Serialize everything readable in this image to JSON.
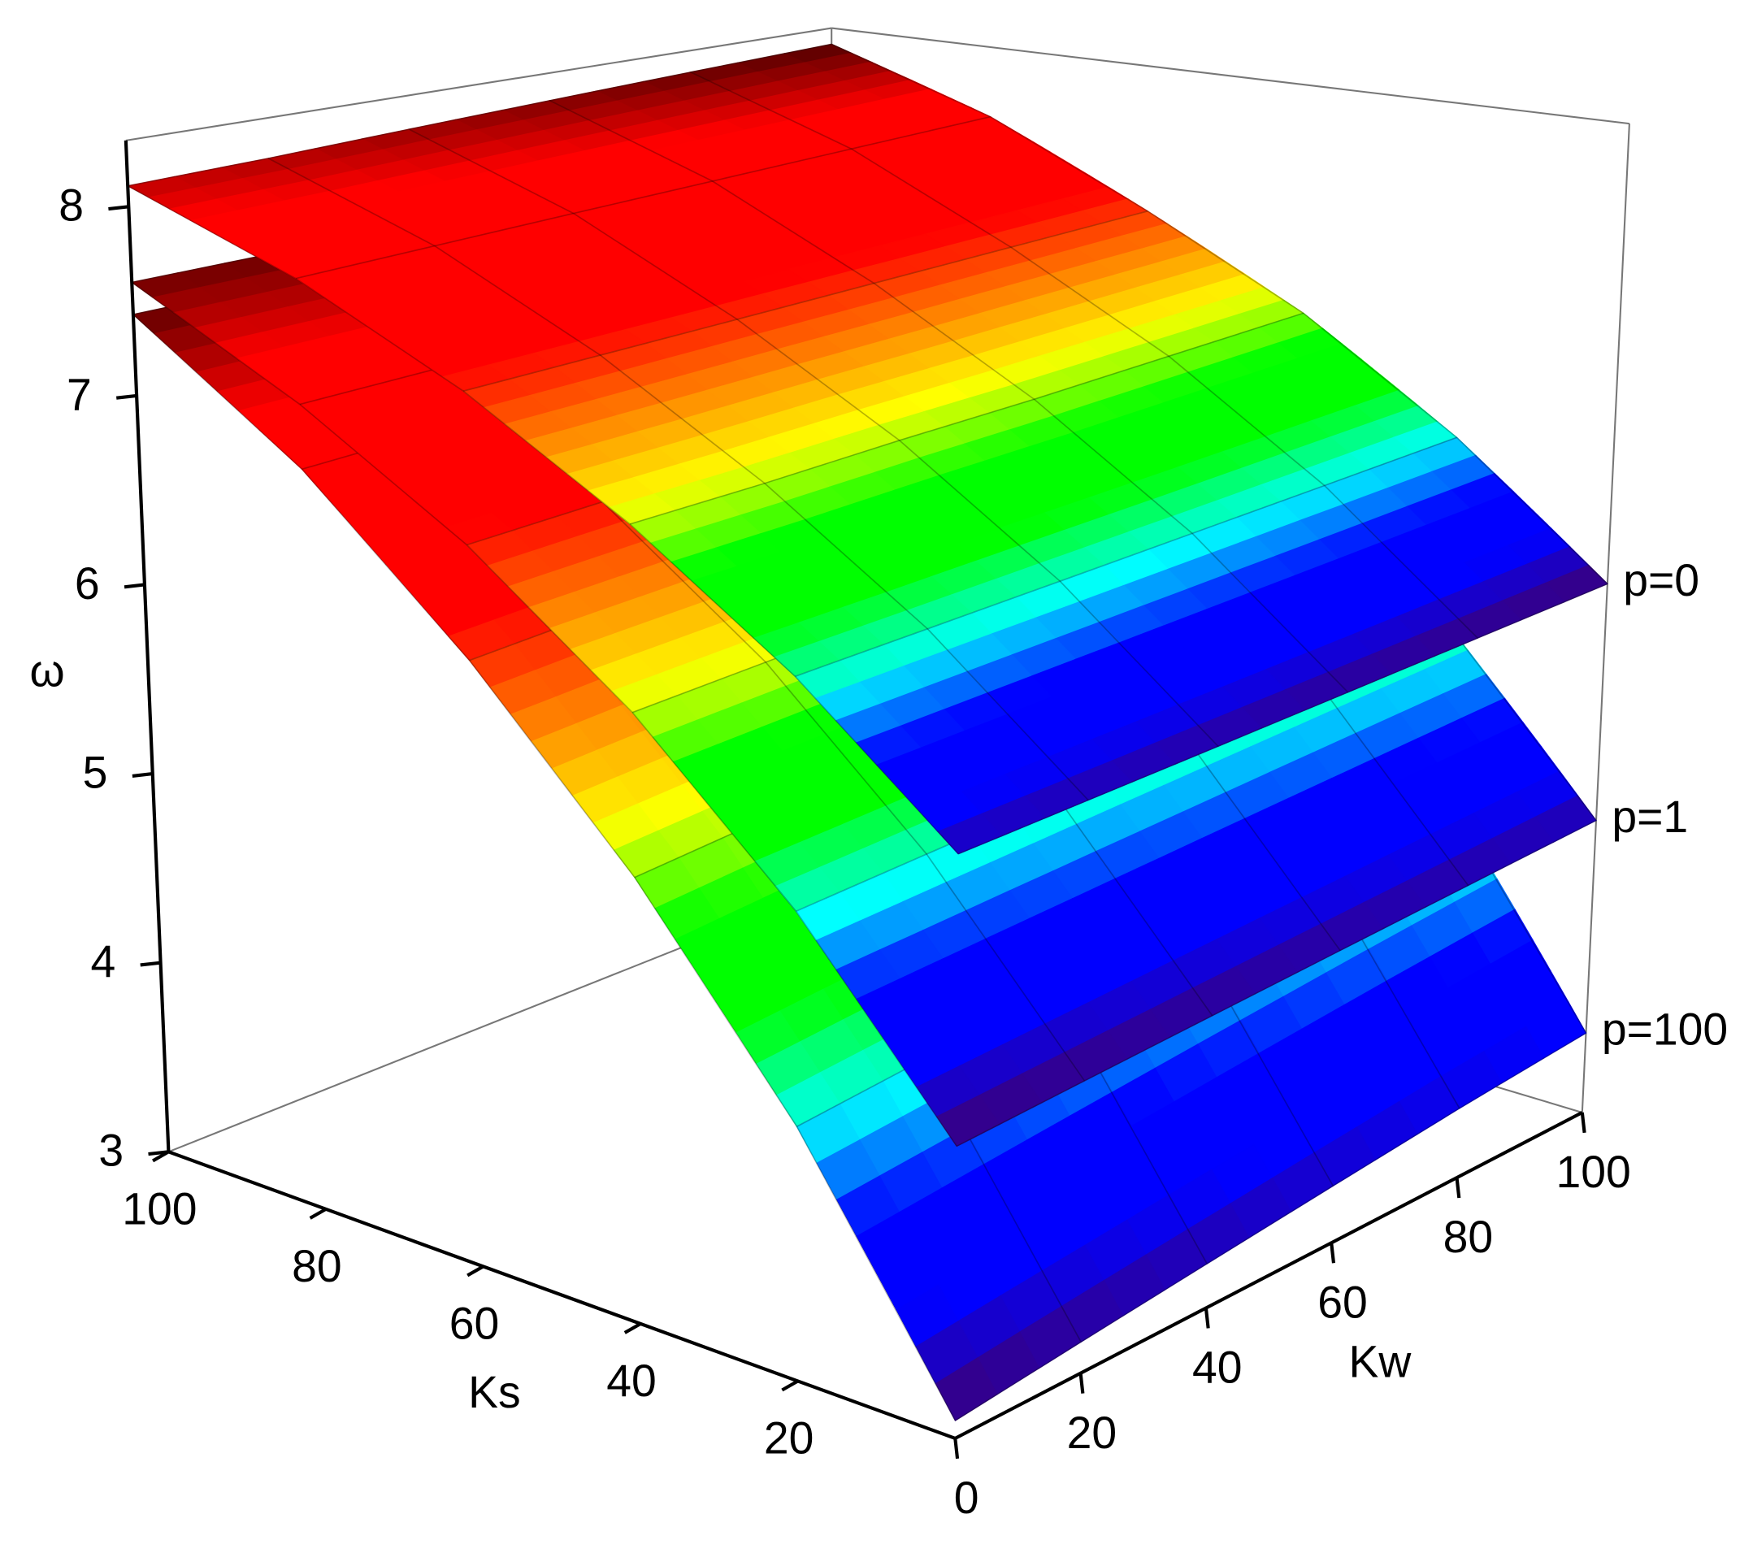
{
  "chart_data": {
    "type": "surface3d",
    "x_label": "Kw",
    "y_label": "Ks",
    "z_label": "ω",
    "x": [
      0,
      20,
      40,
      60,
      80,
      100
    ],
    "y": [
      0,
      20,
      40,
      60,
      80,
      100
    ],
    "xlim": [
      0,
      100
    ],
    "ylim": [
      0,
      100
    ],
    "zlim": [
      3,
      8.35
    ],
    "xticks": [
      0,
      20,
      40,
      60,
      80,
      100
    ],
    "yticks": [
      20,
      40,
      60,
      80,
      100
    ],
    "zticks": [
      3,
      4,
      5,
      6,
      7,
      8
    ],
    "colormap": [
      "#400070",
      "#0000ff",
      "#0000ff",
      "#00ffff",
      "#00ff00",
      "#00ff00",
      "#ffff00",
      "#ff8000",
      "#ff0000",
      "#ff0000",
      "#ff0000",
      "#500000"
    ],
    "series": [
      {
        "name": "p=0",
        "values": [
          [
            5.96,
            5.94,
            5.92,
            5.9,
            5.88,
            5.86
          ],
          [
            6.6,
            6.58,
            6.56,
            6.54,
            6.52,
            6.5
          ],
          [
            7.12,
            7.1,
            7.09,
            7.07,
            7.06,
            7.05
          ],
          [
            7.55,
            7.54,
            7.53,
            7.52,
            7.51,
            7.5
          ],
          [
            7.88,
            7.89,
            7.9,
            7.91,
            7.92,
            7.93
          ],
          [
            8.11,
            8.13,
            8.16,
            8.19,
            8.22,
            8.25
          ]
        ]
      },
      {
        "name": "p=1",
        "values": [
          [
            4.48,
            4.5,
            4.52,
            4.54,
            4.56,
            4.58
          ],
          [
            5.4,
            5.41,
            5.42,
            5.43,
            5.44,
            5.45
          ],
          [
            6.15,
            6.16,
            6.17,
            6.18,
            6.19,
            6.2
          ],
          [
            6.75,
            6.76,
            6.77,
            6.78,
            6.79,
            6.8
          ],
          [
            7.22,
            7.23,
            7.24,
            7.25,
            7.26,
            7.27
          ],
          [
            7.6,
            7.61,
            7.62,
            7.63,
            7.64,
            7.65
          ]
        ]
      },
      {
        "name": "p=100",
        "values": [
          [
            3.09,
            3.16,
            3.23,
            3.3,
            3.37,
            3.43
          ],
          [
            4.3,
            4.35,
            4.4,
            4.45,
            4.5,
            4.55
          ],
          [
            5.3,
            5.34,
            5.38,
            5.42,
            5.46,
            5.5
          ],
          [
            6.15,
            6.18,
            6.21,
            6.24,
            6.27,
            6.3
          ],
          [
            6.88,
            6.9,
            6.92,
            6.94,
            6.96,
            6.98
          ],
          [
            7.43,
            7.44,
            7.45,
            7.46,
            7.47,
            7.48
          ]
        ]
      }
    ]
  }
}
